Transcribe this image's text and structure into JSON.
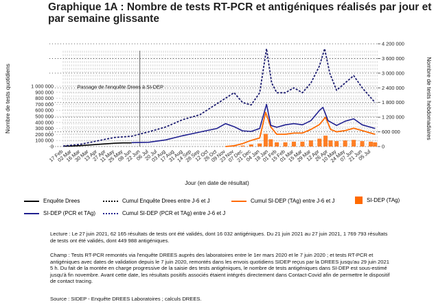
{
  "title": "Graphique 1A : Nombre de tests RT-PCR et antigéniques réalisés par jour et par semaine glissante",
  "colors": {
    "drees": "#000000",
    "sidep_pcr": "#1f1f8f",
    "tag": "#ff6a00",
    "grid": "#dedede"
  },
  "chart_data": {
    "type": "line",
    "annotation": "Passage de l'enquête Drees à SI-DEP",
    "xlabel": "Jour (en date de résultat)",
    "ylabel_left": "Nombre de tests quotidiens",
    "ylabel_right": "Nombre de tests hebdomadaires",
    "ylim_left": [
      0,
      1000000
    ],
    "ylim_right": [
      0,
      4200000
    ],
    "left_ticks": [
      "0",
      "100 000",
      "200 000",
      "300 000",
      "400 000",
      "500 000",
      "600 000",
      "700 000",
      "800 000",
      "900 000",
      "1 000 000"
    ],
    "right_ticks": [
      "0",
      "600 000",
      "1 200 000",
      "1 800 000",
      "2 400 000",
      "3 000 000",
      "3 600 000",
      "4 200 000"
    ],
    "x_ticks": [
      "17 Feb",
      "02 Mar",
      "16 Mar",
      "30 Mar",
      "13 Apr",
      "27 Apr",
      "11 May",
      "25 May",
      "08 Jun",
      "22 Jun",
      "06 Jul",
      "20 Jul",
      "03 Aug",
      "17 Aug",
      "31 Aug",
      "14 Sep",
      "28 Sep",
      "12 Oct",
      "26 Oct",
      "09 Nov",
      "23 Nov",
      "07 Dec",
      "21 Dec",
      "04 Jan",
      "18 Jan",
      "01 Feb",
      "15 Feb",
      "01 Mar",
      "15 Mar",
      "29 Mar",
      "12 Apr",
      "26 Apr",
      "10 May",
      "24 May",
      "07 Jun",
      "21 Jun",
      "05 Jul"
    ],
    "series": [
      {
        "name": "Enquête Drees",
        "axis": "left",
        "points": [
          [
            0,
            5000
          ],
          [
            1,
            8000
          ],
          [
            2,
            15000
          ],
          [
            3,
            25000
          ],
          [
            4,
            35000
          ],
          [
            5,
            45000
          ],
          [
            6,
            55000
          ],
          [
            7,
            60000
          ],
          [
            8,
            60000
          ]
        ]
      },
      {
        "name": "Cumul Enquête Drees entre J-6 et J",
        "axis": "right",
        "points": [
          [
            0,
            20000
          ],
          [
            2,
            90000
          ],
          [
            4,
            230000
          ],
          [
            6,
            370000
          ],
          [
            8,
            420000
          ],
          [
            10,
            600000
          ],
          [
            12,
            800000
          ],
          [
            14,
            1100000
          ],
          [
            16,
            1300000
          ],
          [
            18,
            1750000
          ],
          [
            20,
            2200000
          ],
          [
            21,
            1800000
          ],
          [
            22,
            1700000
          ],
          [
            23,
            2200000
          ],
          [
            23.8,
            4000000
          ],
          [
            24.4,
            2600000
          ],
          [
            25,
            2200000
          ],
          [
            26,
            2200000
          ],
          [
            27,
            2400000
          ],
          [
            28,
            2200000
          ],
          [
            29,
            2600000
          ],
          [
            30,
            3300000
          ],
          [
            30.6,
            4000000
          ],
          [
            31.2,
            3000000
          ],
          [
            32,
            2300000
          ],
          [
            33,
            2600000
          ],
          [
            34,
            2900000
          ],
          [
            35,
            2400000
          ],
          [
            36,
            2000000
          ],
          [
            36.5,
            1800000
          ]
        ]
      },
      {
        "name": "SI-DEP (PCR et TAg)",
        "axis": "left",
        "points": [
          [
            8,
            65000
          ],
          [
            10,
            70000
          ],
          [
            12,
            110000
          ],
          [
            14,
            180000
          ],
          [
            16,
            240000
          ],
          [
            18,
            300000
          ],
          [
            19,
            380000
          ],
          [
            20,
            330000
          ],
          [
            21,
            260000
          ],
          [
            22,
            250000
          ],
          [
            23,
            300000
          ],
          [
            23.8,
            700000
          ],
          [
            24.3,
            350000
          ],
          [
            25,
            320000
          ],
          [
            26,
            360000
          ],
          [
            27,
            380000
          ],
          [
            28,
            360000
          ],
          [
            29,
            430000
          ],
          [
            30,
            600000
          ],
          [
            30.4,
            650000
          ],
          [
            31,
            430000
          ],
          [
            32,
            350000
          ],
          [
            33,
            420000
          ],
          [
            34,
            460000
          ],
          [
            35,
            360000
          ],
          [
            36,
            320000
          ],
          [
            36.5,
            300000
          ]
        ]
      },
      {
        "name": "Cumul SI-DEP (TAg) entre J-6 et J",
        "axis": "right",
        "points": [
          [
            19,
            0
          ],
          [
            20,
            30000
          ],
          [
            21,
            120000
          ],
          [
            22,
            250000
          ],
          [
            23,
            350000
          ],
          [
            23.7,
            1400000
          ],
          [
            24.3,
            800000
          ],
          [
            25,
            500000
          ],
          [
            26,
            500000
          ],
          [
            27,
            550000
          ],
          [
            28,
            550000
          ],
          [
            29,
            700000
          ],
          [
            30,
            900000
          ],
          [
            30.7,
            1200000
          ],
          [
            31.3,
            700000
          ],
          [
            32,
            600000
          ],
          [
            33,
            650000
          ],
          [
            34,
            750000
          ],
          [
            35,
            650000
          ],
          [
            36,
            550000
          ],
          [
            36.5,
            500000
          ]
        ]
      },
      {
        "name": "SI-DEP (TAg)",
        "axis": "left",
        "points": [
          [
            19,
            0
          ],
          [
            20,
            5000
          ],
          [
            21,
            15000
          ],
          [
            22,
            35000
          ],
          [
            23,
            50000
          ],
          [
            23.7,
            210000
          ],
          [
            24.3,
            120000
          ],
          [
            25,
            70000
          ],
          [
            26,
            70000
          ],
          [
            27,
            80000
          ],
          [
            28,
            80000
          ],
          [
            29,
            100000
          ],
          [
            30,
            130000
          ],
          [
            30.7,
            180000
          ],
          [
            31.3,
            100000
          ],
          [
            32,
            90000
          ],
          [
            33,
            100000
          ],
          [
            34,
            110000
          ],
          [
            35,
            90000
          ],
          [
            36,
            80000
          ],
          [
            36.5,
            70000
          ]
        ]
      }
    ]
  },
  "legend": {
    "drees": "Enquête Drees",
    "cumul_drees": "Cumul Enquête Drees entre J-6 et J",
    "cumul_tag": "Cumul SI-DEP (TAg) entre J-6 et J",
    "tag": "SI-DEP (TAg)",
    "sidep": "SI-DEP (PCR et TAg)",
    "cumul_sidep": "Cumul SI-DEP (PCR et TAg) entre J-6 et J"
  },
  "notes": {
    "lecture": "Lecture : Le 27 juin 2021, 62 165 résultats de tests ont été validés, dont 16 032 antigéniques. Du 21 juin 2021 au 27 juin 2021, 1 769 793 résultats de tests ont été validés, dont 449 988 antigéniques.",
    "champ": "Champ : Tests RT-PCR remontés via l'enquête DREES auprès des laboratoires entre le 1er mars 2020 et le 7 juin 2020 ; et tests RT-PCR et antigéniques avec dates de validation depuis le 7 juin 2020, remontés dans les envois quotidiens SIDEP reçus par la DREES jusqu'au 29 juin 2021 5 h. Du fait de la montée en charge progressive de la saisie des tests antigéniques, le nombre de tests antigéniques dans SI-DEP est sous-estimé jusqu'à fin novembre. Avant cette date, les résultats positifs associés étaient intégrés directement dans Contact-Covid afin de permettre le dispositif de contact tracing.",
    "source": "Source : SIDEP - Enquête DREES Laboratoires ; calculs DREES."
  }
}
